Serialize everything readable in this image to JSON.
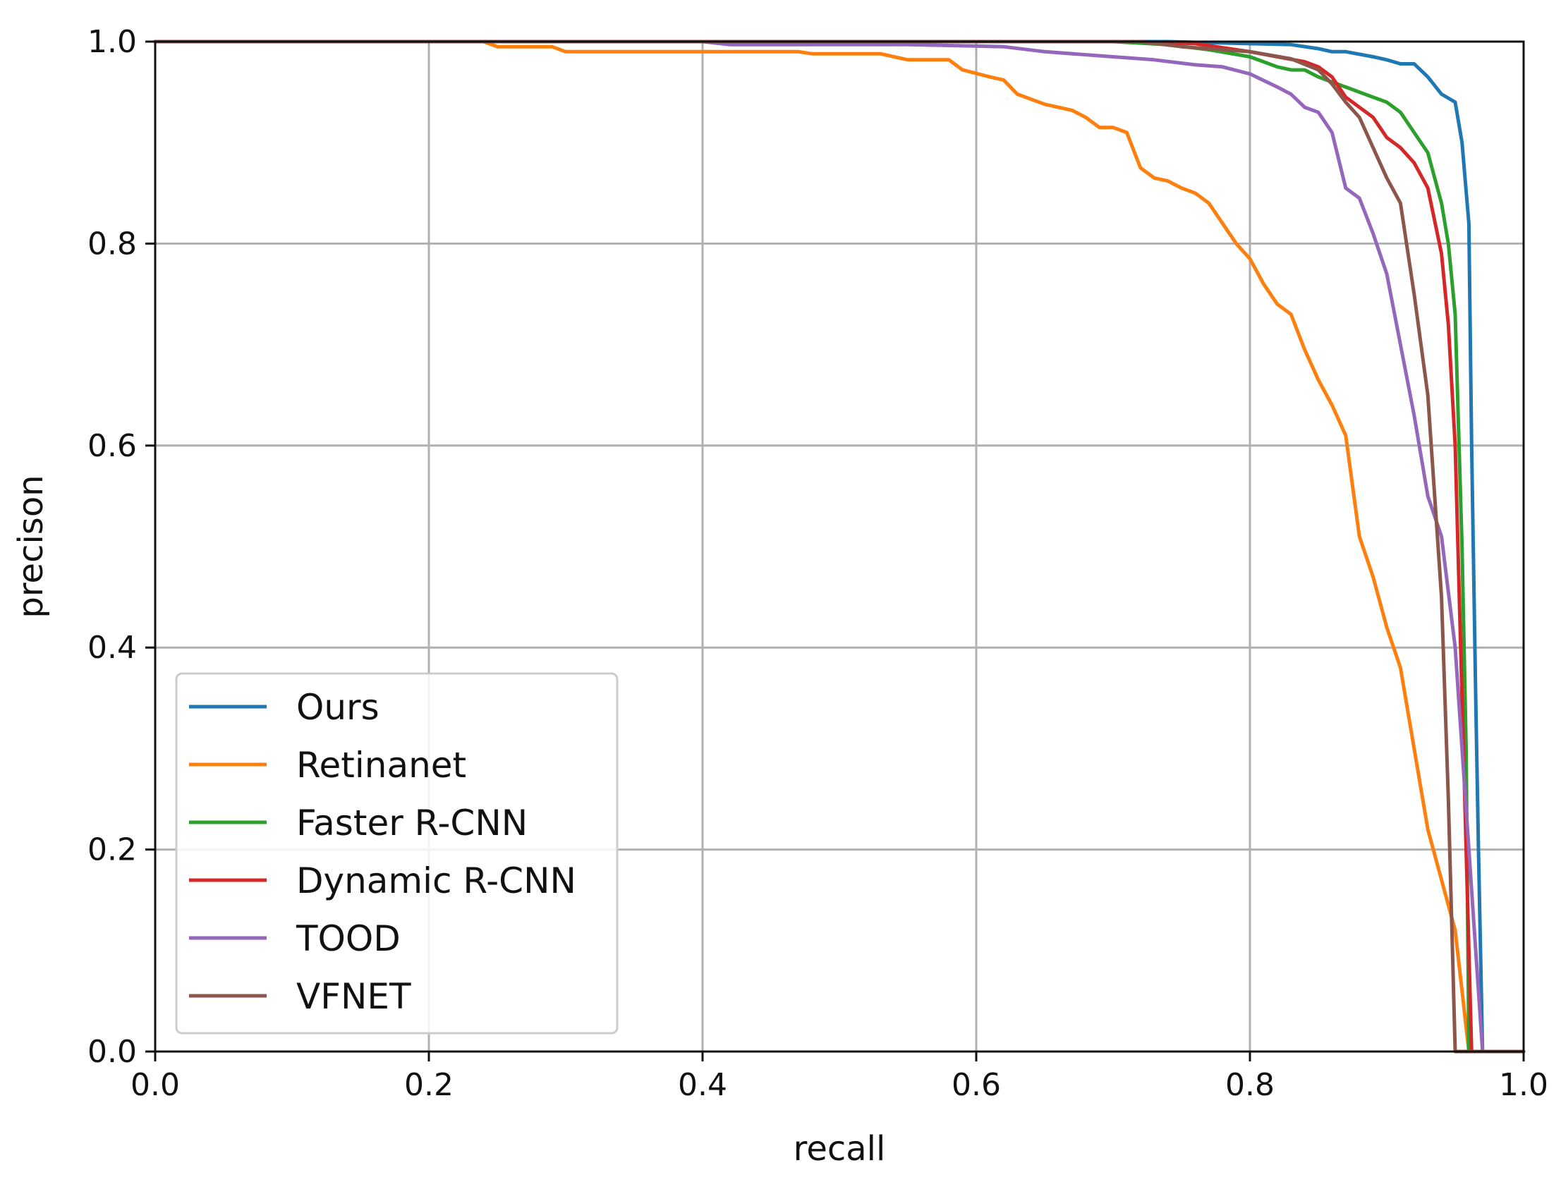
{
  "chart_data": {
    "type": "line",
    "title": "",
    "xlabel": "recall",
    "ylabel": "precison",
    "xlim": [
      0,
      1
    ],
    "ylim": [
      0,
      1
    ],
    "grid": true,
    "legend_position": "lower-left",
    "xticks": [
      "0.0",
      "0.2",
      "0.4",
      "0.6",
      "0.8",
      "1.0"
    ],
    "yticks": [
      "0.0",
      "0.2",
      "0.4",
      "0.6",
      "0.8",
      "1.0"
    ],
    "series": [
      {
        "name": "Ours",
        "color": "#1f77b4",
        "points": [
          [
            0,
            1.0
          ],
          [
            0.6,
            1.0
          ],
          [
            0.74,
            1.0
          ],
          [
            0.8,
            0.998
          ],
          [
            0.83,
            0.997
          ],
          [
            0.85,
            0.993
          ],
          [
            0.86,
            0.99
          ],
          [
            0.87,
            0.99
          ],
          [
            0.89,
            0.985
          ],
          [
            0.9,
            0.982
          ],
          [
            0.91,
            0.978
          ],
          [
            0.92,
            0.978
          ],
          [
            0.93,
            0.965
          ],
          [
            0.94,
            0.948
          ],
          [
            0.95,
            0.94
          ],
          [
            0.955,
            0.9
          ],
          [
            0.96,
            0.82
          ],
          [
            0.962,
            0.6
          ],
          [
            0.965,
            0.35
          ],
          [
            0.967,
            0.2
          ],
          [
            0.97,
            0.0
          ],
          [
            1.0,
            0.0
          ]
        ]
      },
      {
        "name": "Retinanet",
        "color": "#ff7f0e",
        "points": [
          [
            0,
            1.0
          ],
          [
            0.24,
            1.0
          ],
          [
            0.25,
            0.995
          ],
          [
            0.29,
            0.995
          ],
          [
            0.3,
            0.99
          ],
          [
            0.47,
            0.99
          ],
          [
            0.48,
            0.988
          ],
          [
            0.53,
            0.988
          ],
          [
            0.55,
            0.982
          ],
          [
            0.58,
            0.982
          ],
          [
            0.59,
            0.972
          ],
          [
            0.61,
            0.965
          ],
          [
            0.62,
            0.962
          ],
          [
            0.63,
            0.948
          ],
          [
            0.65,
            0.938
          ],
          [
            0.67,
            0.932
          ],
          [
            0.68,
            0.925
          ],
          [
            0.69,
            0.915
          ],
          [
            0.7,
            0.915
          ],
          [
            0.71,
            0.91
          ],
          [
            0.72,
            0.875
          ],
          [
            0.73,
            0.865
          ],
          [
            0.74,
            0.862
          ],
          [
            0.75,
            0.855
          ],
          [
            0.76,
            0.85
          ],
          [
            0.77,
            0.84
          ],
          [
            0.78,
            0.82
          ],
          [
            0.79,
            0.8
          ],
          [
            0.8,
            0.785
          ],
          [
            0.81,
            0.76
          ],
          [
            0.82,
            0.74
          ],
          [
            0.83,
            0.73
          ],
          [
            0.84,
            0.695
          ],
          [
            0.85,
            0.665
          ],
          [
            0.86,
            0.64
          ],
          [
            0.87,
            0.61
          ],
          [
            0.88,
            0.51
          ],
          [
            0.89,
            0.47
          ],
          [
            0.9,
            0.42
          ],
          [
            0.91,
            0.38
          ],
          [
            0.92,
            0.3
          ],
          [
            0.93,
            0.22
          ],
          [
            0.94,
            0.17
          ],
          [
            0.95,
            0.12
          ],
          [
            0.96,
            0.0
          ],
          [
            1.0,
            0.0
          ]
        ]
      },
      {
        "name": "Faster R-CNN",
        "color": "#2ca02c",
        "points": [
          [
            0,
            1.0
          ],
          [
            0.7,
            1.0
          ],
          [
            0.74,
            0.997
          ],
          [
            0.77,
            0.992
          ],
          [
            0.8,
            0.985
          ],
          [
            0.81,
            0.98
          ],
          [
            0.82,
            0.975
          ],
          [
            0.83,
            0.972
          ],
          [
            0.84,
            0.972
          ],
          [
            0.85,
            0.965
          ],
          [
            0.86,
            0.96
          ],
          [
            0.87,
            0.955
          ],
          [
            0.88,
            0.95
          ],
          [
            0.89,
            0.945
          ],
          [
            0.9,
            0.94
          ],
          [
            0.91,
            0.93
          ],
          [
            0.92,
            0.91
          ],
          [
            0.93,
            0.89
          ],
          [
            0.94,
            0.84
          ],
          [
            0.945,
            0.8
          ],
          [
            0.95,
            0.73
          ],
          [
            0.955,
            0.5
          ],
          [
            0.958,
            0.3
          ],
          [
            0.96,
            0.0
          ],
          [
            1.0,
            0.0
          ]
        ]
      },
      {
        "name": "Dynamic R-CNN",
        "color": "#d62728",
        "points": [
          [
            0,
            1.0
          ],
          [
            0.72,
            1.0
          ],
          [
            0.76,
            0.998
          ],
          [
            0.8,
            0.99
          ],
          [
            0.82,
            0.985
          ],
          [
            0.84,
            0.98
          ],
          [
            0.85,
            0.975
          ],
          [
            0.86,
            0.965
          ],
          [
            0.87,
            0.945
          ],
          [
            0.88,
            0.935
          ],
          [
            0.89,
            0.925
          ],
          [
            0.9,
            0.905
          ],
          [
            0.91,
            0.895
          ],
          [
            0.92,
            0.88
          ],
          [
            0.93,
            0.855
          ],
          [
            0.94,
            0.79
          ],
          [
            0.945,
            0.72
          ],
          [
            0.95,
            0.6
          ],
          [
            0.955,
            0.35
          ],
          [
            0.96,
            0.1
          ],
          [
            0.962,
            0.0
          ],
          [
            1.0,
            0.0
          ]
        ]
      },
      {
        "name": "TOOD",
        "color": "#9467bd",
        "points": [
          [
            0,
            1.0
          ],
          [
            0.4,
            1.0
          ],
          [
            0.42,
            0.997
          ],
          [
            0.55,
            0.997
          ],
          [
            0.62,
            0.995
          ],
          [
            0.65,
            0.99
          ],
          [
            0.7,
            0.985
          ],
          [
            0.73,
            0.982
          ],
          [
            0.76,
            0.977
          ],
          [
            0.78,
            0.975
          ],
          [
            0.8,
            0.968
          ],
          [
            0.82,
            0.955
          ],
          [
            0.83,
            0.948
          ],
          [
            0.84,
            0.935
          ],
          [
            0.85,
            0.93
          ],
          [
            0.86,
            0.91
          ],
          [
            0.87,
            0.855
          ],
          [
            0.88,
            0.845
          ],
          [
            0.89,
            0.81
          ],
          [
            0.9,
            0.77
          ],
          [
            0.91,
            0.7
          ],
          [
            0.92,
            0.63
          ],
          [
            0.93,
            0.55
          ],
          [
            0.94,
            0.51
          ],
          [
            0.95,
            0.4
          ],
          [
            0.96,
            0.2
          ],
          [
            0.965,
            0.1
          ],
          [
            0.97,
            0.0
          ],
          [
            1.0,
            0.0
          ]
        ]
      },
      {
        "name": "VFNET",
        "color": "#8c564b",
        "points": [
          [
            0,
            1.0
          ],
          [
            0.72,
            1.0
          ],
          [
            0.75,
            0.995
          ],
          [
            0.8,
            0.99
          ],
          [
            0.83,
            0.983
          ],
          [
            0.85,
            0.972
          ],
          [
            0.86,
            0.958
          ],
          [
            0.87,
            0.94
          ],
          [
            0.88,
            0.925
          ],
          [
            0.89,
            0.895
          ],
          [
            0.9,
            0.865
          ],
          [
            0.91,
            0.84
          ],
          [
            0.92,
            0.75
          ],
          [
            0.93,
            0.65
          ],
          [
            0.935,
            0.55
          ],
          [
            0.94,
            0.45
          ],
          [
            0.945,
            0.25
          ],
          [
            0.95,
            0.0
          ],
          [
            1.0,
            0.0
          ]
        ]
      }
    ]
  }
}
